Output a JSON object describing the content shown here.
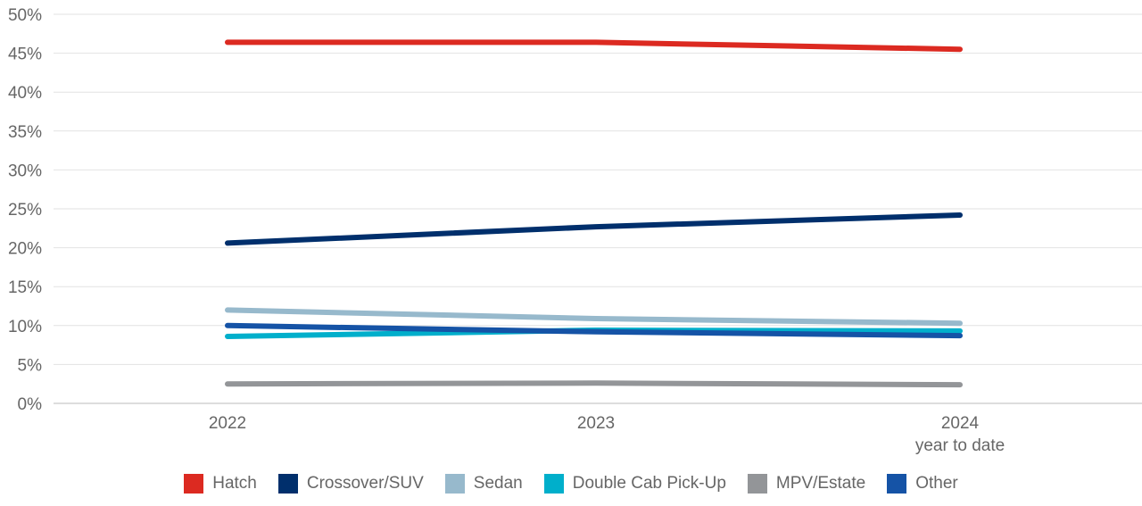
{
  "chart_data": {
    "type": "line",
    "title": "",
    "xlabel": "",
    "ylabel": "",
    "categories": [
      "2022",
      "2023",
      "2024"
    ],
    "category_sublabels": [
      "",
      "",
      "year to date"
    ],
    "ylim": [
      0,
      50
    ],
    "yticks": [
      0,
      5,
      10,
      15,
      20,
      25,
      30,
      35,
      40,
      45,
      50
    ],
    "ytick_format": "%",
    "grid": true,
    "legend_placement": "bottom",
    "series": [
      {
        "name": "Hatch",
        "color": "#dc2a21",
        "values": [
          46.4,
          46.4,
          45.5
        ]
      },
      {
        "name": "Crossover/SUV",
        "color": "#002f6c",
        "values": [
          20.6,
          22.7,
          24.2
        ]
      },
      {
        "name": "Sedan",
        "color": "#97b9cc",
        "values": [
          12.0,
          10.9,
          10.3
        ]
      },
      {
        "name": "Double Cab Pick-Up",
        "color": "#00afcb",
        "values": [
          8.6,
          9.4,
          9.3
        ]
      },
      {
        "name": "MPV/Estate",
        "color": "#939598",
        "values": [
          2.5,
          2.6,
          2.4
        ]
      },
      {
        "name": "Other",
        "color": "#1553a6",
        "values": [
          10.0,
          9.2,
          8.7
        ]
      }
    ]
  }
}
